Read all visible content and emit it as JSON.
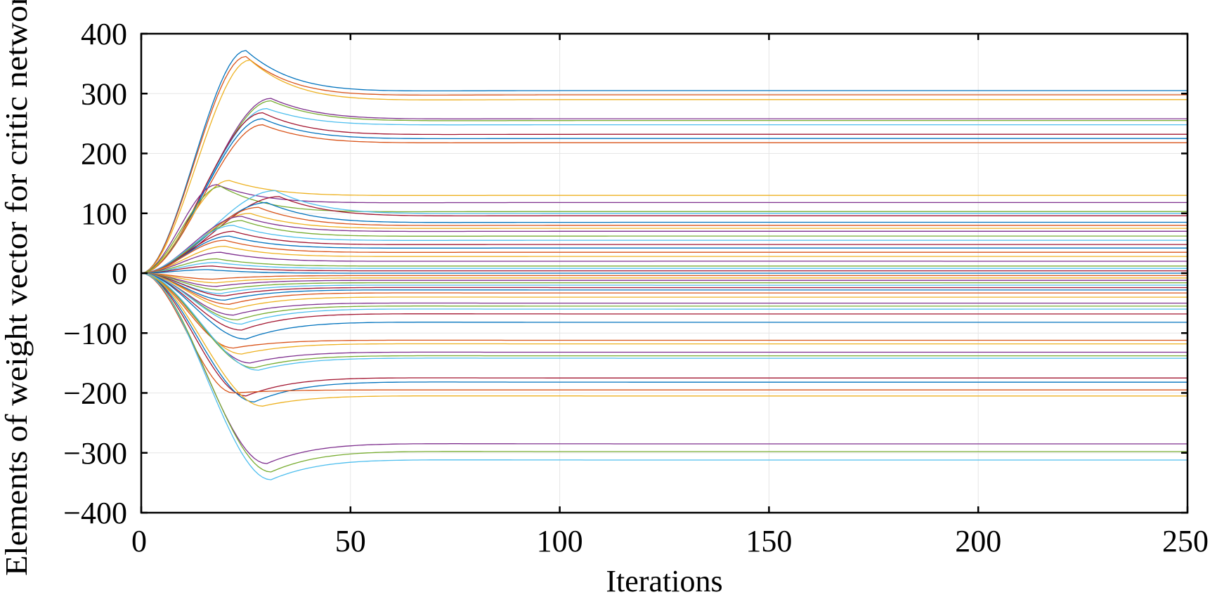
{
  "chart_data": {
    "type": "line",
    "title": "",
    "xlabel": "Iterations",
    "ylabel": "Elements of weight vector for critic network",
    "xlim": [
      0,
      250
    ],
    "ylim": [
      -400,
      400
    ],
    "x_ticks": [
      0,
      50,
      100,
      150,
      200,
      250
    ],
    "y_ticks": [
      400,
      300,
      200,
      100,
      0,
      -100,
      -200,
      -300,
      -400
    ],
    "x_tick_labels": [
      "0",
      "50",
      "100",
      "150",
      "200",
      "250"
    ],
    "y_tick_labels": [
      "400",
      "300",
      "200",
      "100",
      "0",
      "−100",
      "−200",
      "−300",
      "−400"
    ],
    "grid": true,
    "legend": "none",
    "colors": [
      "#0072BD",
      "#D95319",
      "#EDB120",
      "#7E2F8E",
      "#77AC30",
      "#4DBEEE",
      "#A2142F"
    ],
    "series_shape": "all series start at 0 at iteration 0, overshoot near iteration 20-30, then settle to a steady value by about iteration 60",
    "series": [
      {
        "final": 305,
        "peak": 372,
        "peak_at": 25
      },
      {
        "final": 298,
        "peak": 362,
        "peak_at": 25
      },
      {
        "final": 290,
        "peak": 356,
        "peak_at": 26
      },
      {
        "final": 258,
        "peak": 292,
        "peak_at": 31
      },
      {
        "final": 255,
        "peak": 288,
        "peak_at": 31
      },
      {
        "final": 248,
        "peak": 275,
        "peak_at": 30
      },
      {
        "final": 232,
        "peak": 268,
        "peak_at": 29
      },
      {
        "final": 225,
        "peak": 258,
        "peak_at": 29
      },
      {
        "final": 218,
        "peak": 248,
        "peak_at": 29
      },
      {
        "final": 130,
        "peak": 155,
        "peak_at": 21
      },
      {
        "final": 118,
        "peak": 148,
        "peak_at": 18
      },
      {
        "final": 103,
        "peak": 145,
        "peak_at": 19
      },
      {
        "final": 100,
        "peak": 138,
        "peak_at": 32
      },
      {
        "final": 96,
        "peak": 128,
        "peak_at": 33
      },
      {
        "final": 85,
        "peak": 118,
        "peak_at": 30
      },
      {
        "final": 80,
        "peak": 110,
        "peak_at": 28
      },
      {
        "final": 75,
        "peak": 100,
        "peak_at": 26
      },
      {
        "final": 70,
        "peak": 95,
        "peak_at": 24
      },
      {
        "final": 62,
        "peak": 88,
        "peak_at": 24
      },
      {
        "final": 55,
        "peak": 80,
        "peak_at": 22
      },
      {
        "final": 48,
        "peak": 70,
        "peak_at": 22
      },
      {
        "final": 42,
        "peak": 62,
        "peak_at": 21
      },
      {
        "final": 35,
        "peak": 55,
        "peak_at": 20
      },
      {
        "final": 28,
        "peak": 45,
        "peak_at": 20
      },
      {
        "final": 20,
        "peak": 35,
        "peak_at": 19
      },
      {
        "final": 12,
        "peak": 24,
        "peak_at": 18
      },
      {
        "final": 8,
        "peak": 18,
        "peak_at": 18
      },
      {
        "final": 4,
        "peak": 12,
        "peak_at": 17
      },
      {
        "final": 0,
        "peak": 6,
        "peak_at": 16
      },
      {
        "final": -4,
        "peak": -10,
        "peak_at": 17
      },
      {
        "final": -8,
        "peak": -16,
        "peak_at": 18
      },
      {
        "final": -12,
        "peak": -22,
        "peak_at": 18
      },
      {
        "final": -16,
        "peak": -28,
        "peak_at": 19
      },
      {
        "final": -20,
        "peak": -34,
        "peak_at": 19
      },
      {
        "final": -24,
        "peak": -38,
        "peak_at": 20
      },
      {
        "final": -28,
        "peak": -45,
        "peak_at": 20
      },
      {
        "final": -33,
        "peak": -52,
        "peak_at": 21
      },
      {
        "final": -40,
        "peak": -60,
        "peak_at": 22
      },
      {
        "final": -50,
        "peak": -70,
        "peak_at": 22
      },
      {
        "final": -55,
        "peak": -78,
        "peak_at": 23
      },
      {
        "final": -60,
        "peak": -85,
        "peak_at": 24
      },
      {
        "final": -68,
        "peak": -95,
        "peak_at": 24
      },
      {
        "final": -82,
        "peak": -110,
        "peak_at": 25
      },
      {
        "final": -112,
        "peak": -125,
        "peak_at": 22
      },
      {
        "final": -118,
        "peak": -135,
        "peak_at": 24
      },
      {
        "final": -132,
        "peak": -150,
        "peak_at": 26
      },
      {
        "final": -138,
        "peak": -158,
        "peak_at": 27
      },
      {
        "final": -142,
        "peak": -162,
        "peak_at": 28
      },
      {
        "final": -175,
        "peak": -205,
        "peak_at": 25
      },
      {
        "final": -182,
        "peak": -215,
        "peak_at": 27
      },
      {
        "final": -195,
        "peak": -200,
        "peak_at": 22
      },
      {
        "final": -205,
        "peak": -222,
        "peak_at": 29
      },
      {
        "final": -285,
        "peak": -318,
        "peak_at": 30
      },
      {
        "final": -298,
        "peak": -332,
        "peak_at": 31
      },
      {
        "final": -312,
        "peak": -345,
        "peak_at": 31
      }
    ]
  }
}
